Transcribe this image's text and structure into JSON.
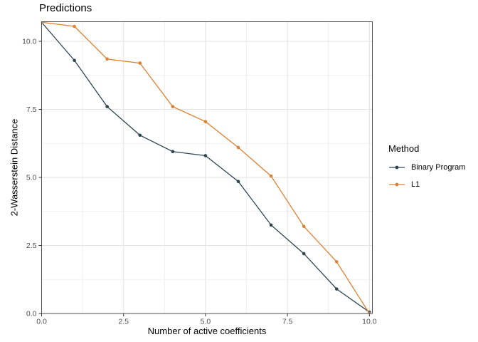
{
  "chart_data": {
    "type": "line",
    "title": "Predictions",
    "xlabel": "Number of active coefficients",
    "ylabel": "2-Wasserstein Distance",
    "x": [
      0,
      1,
      2,
      3,
      4,
      5,
      6,
      7,
      8,
      9,
      10
    ],
    "series": [
      {
        "name": "Binary Program",
        "color": "#2e4653",
        "values": [
          10.7,
          9.3,
          7.6,
          6.55,
          5.95,
          5.8,
          4.85,
          3.25,
          2.2,
          0.9,
          0.05
        ]
      },
      {
        "name": "L1",
        "color": "#dd8133",
        "values": [
          10.7,
          10.55,
          9.35,
          9.2,
          7.6,
          7.05,
          6.1,
          5.05,
          3.2,
          1.9,
          0.0
        ]
      }
    ],
    "xlim": [
      0,
      10.09
    ],
    "ylim": [
      0,
      10.72
    ],
    "tick_values": [
      0,
      2.5,
      5,
      7.5,
      10
    ],
    "x_tick_labels": [
      "0.0",
      "2.5",
      "5.0",
      "7.5",
      "10.0"
    ],
    "y_tick_labels": [
      "0.0",
      "2.5",
      "5.0",
      "7.5",
      "10.0"
    ],
    "minor_tick_values": [
      1.25,
      3.75,
      6.25,
      8.75
    ],
    "grid": true,
    "legend": {
      "title": "Method",
      "position": "right"
    },
    "style": {
      "background": "#ffffff",
      "grid_major": "#e2e2e2",
      "grid_minor": "#efefef",
      "panel_border": "#4d4d4d",
      "tick_color": "#333333",
      "tick_label_color": "#4d4d4d"
    }
  }
}
